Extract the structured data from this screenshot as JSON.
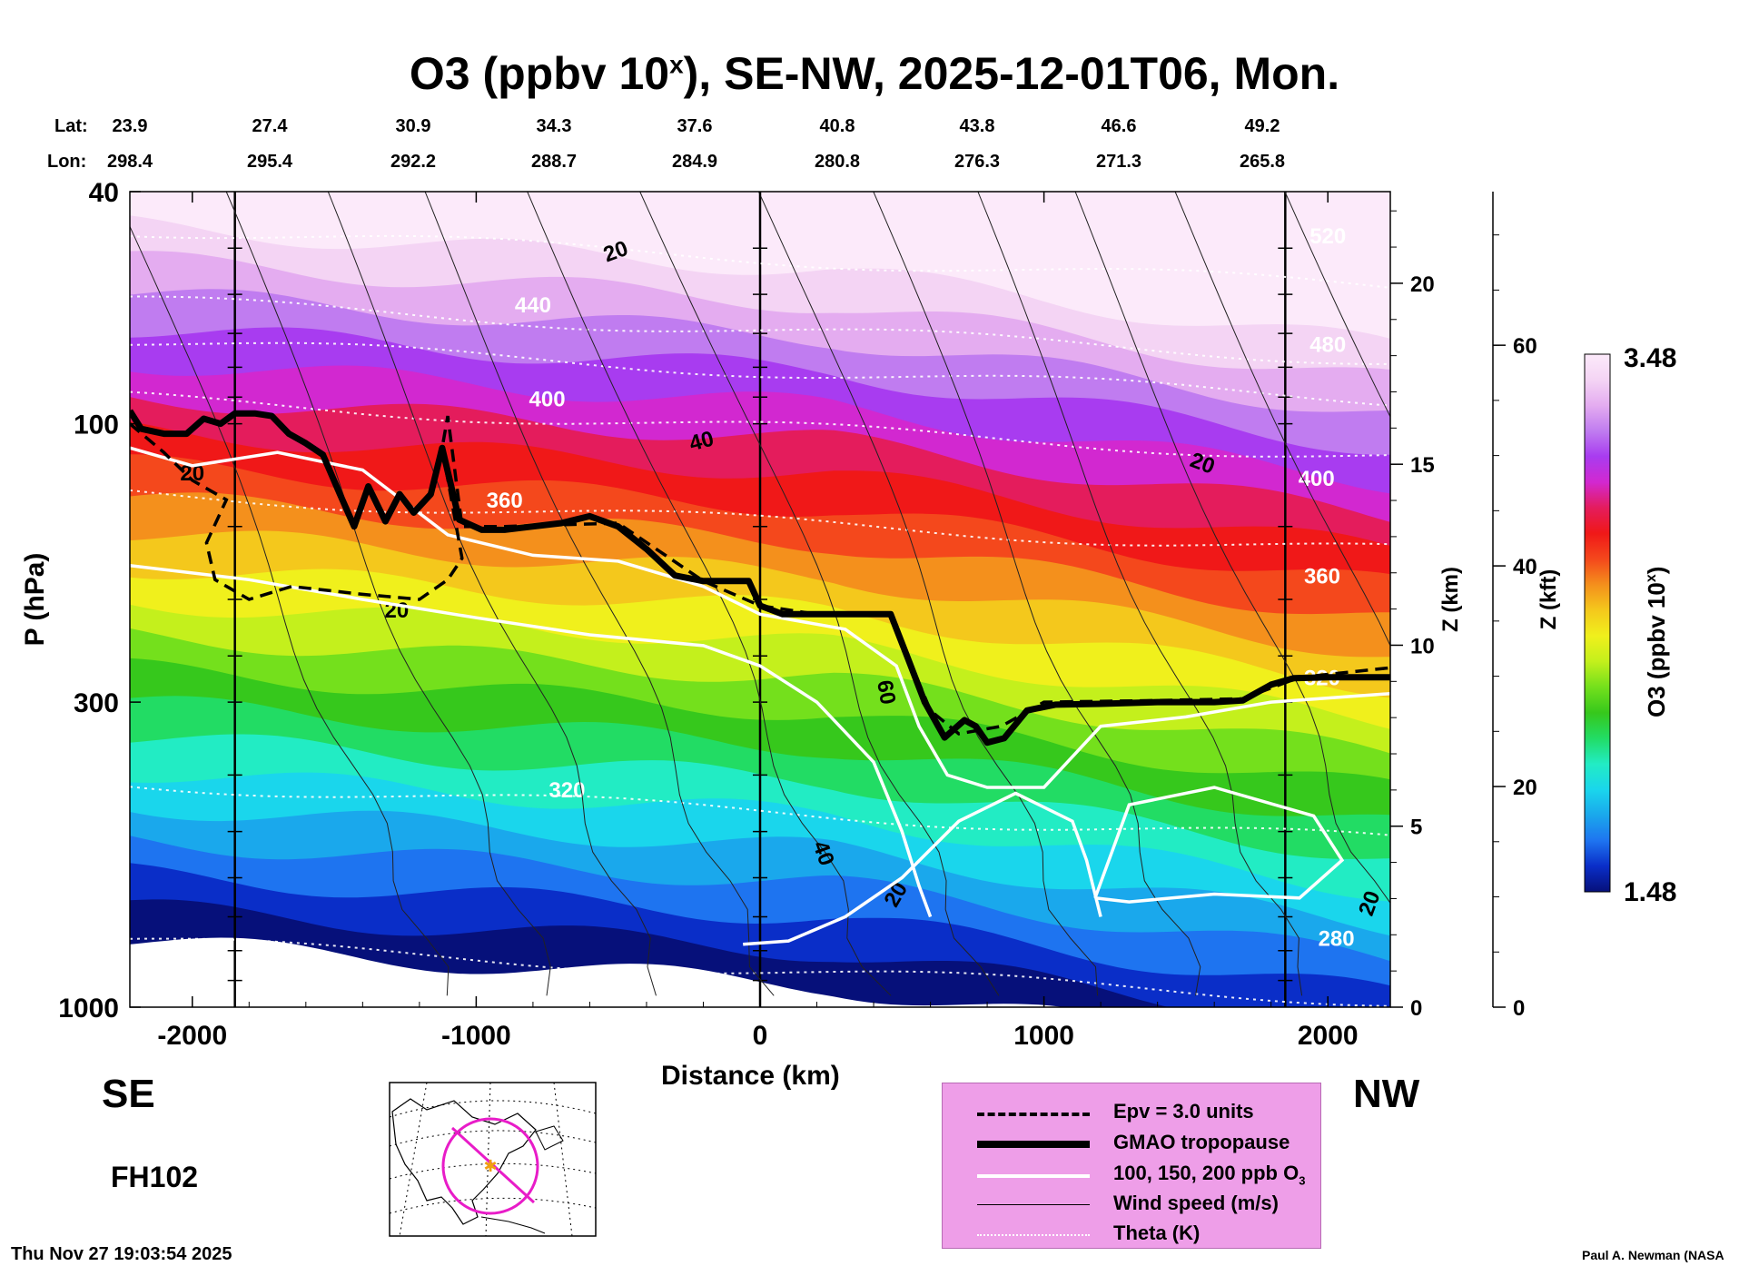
{
  "title": {
    "main": "O3 (ppbv 10",
    "sup": "x",
    "rest": "), SE-NW, 2025-12-01T06, Mon."
  },
  "chart_data": {
    "type": "heatmap",
    "x_label": "Distance (km)",
    "y_label": "P (hPa)",
    "right_axis_1_label": "Z (km)",
    "right_axis_2_label": "Z (kft)",
    "colorbar_label": "O3 (ppbv 10",
    "colorbar_label_sup": "x",
    "colorbar_label_end": ")",
    "colorbar_max": "3.48",
    "colorbar_min": "1.48",
    "x_range": [
      -2220,
      2220
    ],
    "y_range_hpa": [
      1000,
      40
    ],
    "y_scale": "log",
    "x_ticks": [
      -2000,
      -1000,
      0,
      1000,
      2000
    ],
    "x_tick_labels": [
      "-2000",
      "-1000",
      "0",
      "1000",
      "2000"
    ],
    "y_ticks": [
      40,
      100,
      300,
      1000
    ],
    "y_tick_labels": [
      "40",
      "100",
      "300",
      "1000"
    ],
    "z_km_ticks": [
      0,
      5,
      10,
      15,
      20
    ],
    "z_kft_ticks": [
      0,
      20,
      40,
      60
    ],
    "lat_label": "Lat:",
    "lon_label": "Lon:",
    "lat": [
      "23.9",
      "27.4",
      "30.9",
      "34.3",
      "37.6",
      "40.8",
      "43.8",
      "46.6",
      "49.2"
    ],
    "lon": [
      "298.4",
      "295.4",
      "292.2",
      "288.7",
      "284.9",
      "280.8",
      "276.3",
      "271.3",
      "265.8"
    ],
    "vertical_markers_km": [
      -1850,
      0,
      1850
    ],
    "tropopause_hpa": [
      [
        -2220,
        95
      ],
      [
        -2180,
        102
      ],
      [
        -2100,
        104
      ],
      [
        -2020,
        104
      ],
      [
        -1960,
        98
      ],
      [
        -1900,
        100
      ],
      [
        -1850,
        96
      ],
      [
        -1780,
        96
      ],
      [
        -1720,
        97
      ],
      [
        -1660,
        104
      ],
      [
        -1600,
        108
      ],
      [
        -1540,
        113
      ],
      [
        -1480,
        132
      ],
      [
        -1430,
        150
      ],
      [
        -1380,
        128
      ],
      [
        -1320,
        147
      ],
      [
        -1270,
        132
      ],
      [
        -1220,
        142
      ],
      [
        -1160,
        132
      ],
      [
        -1120,
        110
      ],
      [
        -1060,
        146
      ],
      [
        -980,
        152
      ],
      [
        -900,
        152
      ],
      [
        -800,
        150
      ],
      [
        -700,
        148
      ],
      [
        -600,
        144
      ],
      [
        -500,
        150
      ],
      [
        -400,
        164
      ],
      [
        -300,
        182
      ],
      [
        -200,
        186
      ],
      [
        -100,
        186
      ],
      [
        -40,
        186
      ],
      [
        0,
        205
      ],
      [
        80,
        212
      ],
      [
        200,
        212
      ],
      [
        300,
        212
      ],
      [
        460,
        212
      ],
      [
        520,
        252
      ],
      [
        580,
        300
      ],
      [
        650,
        345
      ],
      [
        720,
        322
      ],
      [
        760,
        330
      ],
      [
        800,
        352
      ],
      [
        860,
        346
      ],
      [
        940,
        310
      ],
      [
        1040,
        303
      ],
      [
        1200,
        302
      ],
      [
        1400,
        300
      ],
      [
        1600,
        300
      ],
      [
        1700,
        298
      ],
      [
        1800,
        280
      ],
      [
        1880,
        273
      ],
      [
        2000,
        272
      ],
      [
        2220,
        272
      ]
    ],
    "theta_levels_K": [
      {
        "label": "440",
        "z": 19.5
      },
      {
        "label": "400",
        "z": 16.8
      },
      {
        "label": "360",
        "z": 14.2
      },
      {
        "label": "320",
        "z": 6.2
      },
      {
        "label": "520",
        "z": 21.5
      },
      {
        "label": "480",
        "z": 18.4
      },
      {
        "label": "280",
        "z": 1.8
      }
    ],
    "wind_labels": [
      "20",
      "20",
      "40",
      "20",
      "20",
      "60",
      "40",
      "20",
      "20"
    ],
    "ozone_band_colors": [
      "#06107a",
      "#0a2ec8",
      "#1e74f0",
      "#1aa8ec",
      "#1ad6ec",
      "#22ecc4",
      "#22dc64",
      "#36c81c",
      "#74e01c",
      "#c4f01c",
      "#f0f01c",
      "#f4c81c",
      "#f4901c",
      "#f4481c",
      "#f01818",
      "#e41c5c",
      "#d228d0",
      "#a83cf0",
      "#c07cf0",
      "#e4acf0",
      "#f4d4f4",
      "#fceafa"
    ]
  },
  "map": {
    "name": "inset map"
  },
  "legend": {
    "items": [
      {
        "label": "Epv = 3.0 units",
        "style": "dashed"
      },
      {
        "label": "GMAO tropopause",
        "style": "thick"
      },
      {
        "label": "100, 150, 200 ppb O",
        "sub": "3",
        "style": "white"
      },
      {
        "label": "Wind speed (m/s)",
        "style": "thin"
      },
      {
        "label": "Theta (K)",
        "style": "dotted"
      }
    ]
  },
  "labels": {
    "se": "SE",
    "nw": "NW",
    "forecast_hour": "FH102",
    "timestamp": "Thu Nov 27 19:03:54 2025",
    "credit": "Paul A. Newman (NASA"
  }
}
